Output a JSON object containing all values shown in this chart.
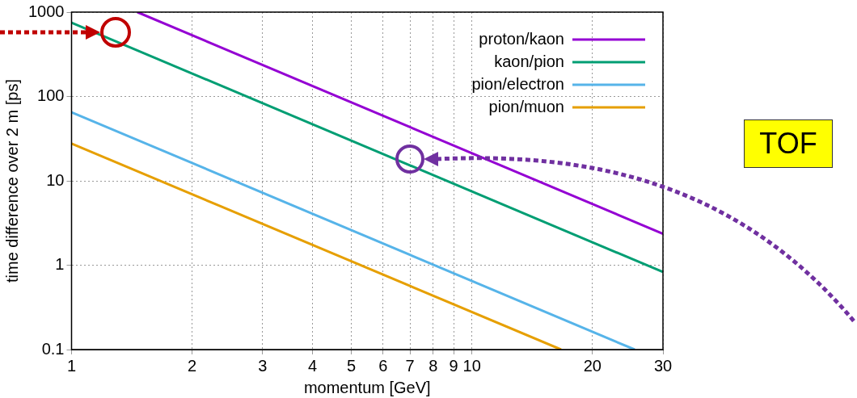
{
  "chart_data": {
    "type": "line",
    "xlabel": "momentum [GeV]",
    "ylabel": "time difference over 2 m [ps]",
    "log": "xy",
    "grid": true,
    "legend": "top right",
    "marker": "none",
    "xlim": [
      1,
      30
    ],
    "ylim": [
      0.1,
      1000
    ],
    "xticks": [
      1,
      2,
      3,
      4,
      5,
      6,
      7,
      8,
      9,
      10,
      20,
      30
    ],
    "yticks": [
      0.1,
      1,
      10,
      100,
      1000
    ],
    "series": [
      {
        "name": "proton/kaon",
        "color": "#9400d3",
        "x": [
          1.46,
          30
        ],
        "values": [
          1000,
          2.36
        ]
      },
      {
        "name": "kaon/pion",
        "color": "#009e73",
        "x": [
          1,
          30
        ],
        "values": [
          750,
          0.83
        ]
      },
      {
        "name": "pion/electron",
        "color": "#56b4e9",
        "x": [
          1,
          25.5
        ],
        "values": [
          65,
          0.1
        ]
      },
      {
        "name": "pion/muon",
        "color": "#e69f00",
        "x": [
          1,
          16.7
        ],
        "values": [
          27.7,
          0.1
        ]
      }
    ],
    "annotations": [
      "TOF"
    ]
  }
}
